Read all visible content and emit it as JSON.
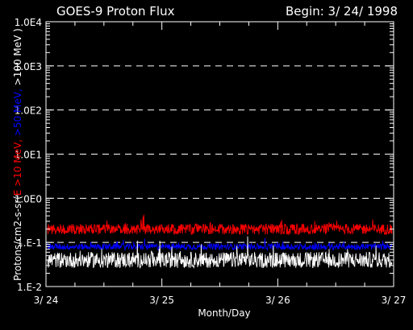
{
  "chart_data": {
    "type": "line",
    "title": "GOES-9 Proton Flux",
    "begin_label": "Begin: 3/ 24/ 1998",
    "xlabel": "Month/Day",
    "ylabel_parts": [
      {
        "text": "Protons/cm2-s-sr(",
        "color": "#ffffff"
      },
      {
        "text": "E >10 MeV, ",
        "color": "#ff0000"
      },
      {
        "text": ">50 MeV, ",
        "color": "#0000ff"
      },
      {
        "text": ">100 MeV )",
        "color": "#ffffff"
      }
    ],
    "y_scale": "log",
    "ylim": [
      0.01,
      10000
    ],
    "y_ticks": [
      {
        "value": 10000,
        "label": "1.0E4"
      },
      {
        "value": 1000,
        "label": "1.0E3"
      },
      {
        "value": 100,
        "label": "1.0E2"
      },
      {
        "value": 10,
        "label": "1.0E1"
      },
      {
        "value": 1,
        "label": "1.0E0"
      },
      {
        "value": 0.1,
        "label": "1.E-1"
      },
      {
        "value": 0.01,
        "label": "1.E-2"
      }
    ],
    "xlim": [
      "1998-03-24",
      "1998-03-27"
    ],
    "x_ticks": [
      {
        "value": "1998-03-24",
        "label": "3/ 24"
      },
      {
        "value": "1998-03-25",
        "label": "3/ 25"
      },
      {
        "value": "1998-03-26",
        "label": "3/ 26"
      },
      {
        "value": "1998-03-27",
        "label": "3/ 27"
      }
    ],
    "grid": "dashed horizontal at decades",
    "series": [
      {
        "color": "#ff0000",
        "level": 0.2,
        "spread_decades": 0.12
      },
      {
        "color": "#0000ff",
        "level": 0.08,
        "spread_decades": 0.07
      },
      {
        "color": "#ffffff",
        "level": 0.04,
        "spread_decades": 0.18
      }
    ]
  }
}
